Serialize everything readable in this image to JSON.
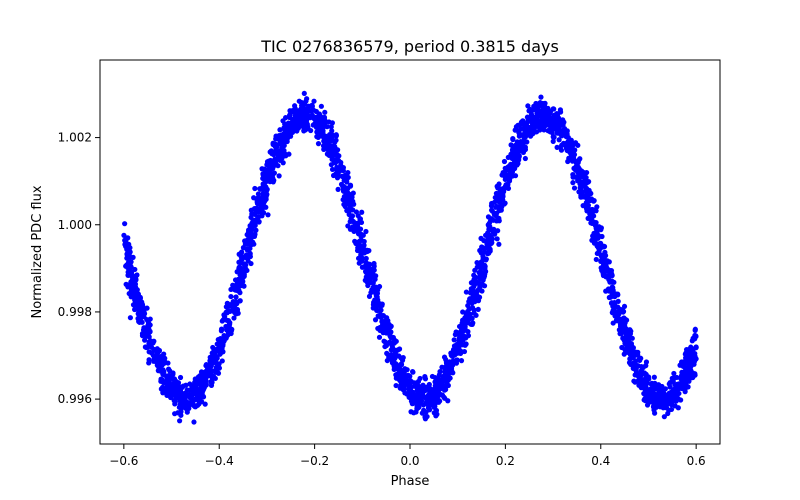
{
  "chart_data": {
    "type": "scatter",
    "title": "TIC 0276836579, period 0.3815 days",
    "xlabel": "Phase",
    "ylabel": "Normalized PDC flux",
    "xlim": [
      -0.65,
      0.65
    ],
    "ylim": [
      0.99497,
      1.00378
    ],
    "x_ticks": [
      -0.6,
      -0.4,
      -0.2,
      0.0,
      0.2,
      0.4,
      0.6
    ],
    "x_tick_labels": [
      "−0.6",
      "−0.4",
      "−0.2",
      "0.0",
      "0.2",
      "0.4",
      "0.6"
    ],
    "y_ticks": [
      0.996,
      0.998,
      1.0,
      1.002
    ],
    "y_tick_labels": [
      "0.996",
      "0.998",
      "1.000",
      "1.002"
    ],
    "grid": false,
    "legend": "none",
    "marker_color": "#0000ff",
    "series": [
      {
        "x_range": [
          -0.6,
          0.6
        ],
        "approx_points": 3000,
        "model": {
          "mean": 0.99925,
          "amplitude": 0.00325,
          "minima_phase": [
            -0.47,
            0.03,
            0.53
          ],
          "maxima_phase": [
            -0.22,
            0.28
          ],
          "min_flux": 0.99595,
          "max_flux": 1.0025,
          "scatter": 0.00035
        }
      }
    ]
  }
}
